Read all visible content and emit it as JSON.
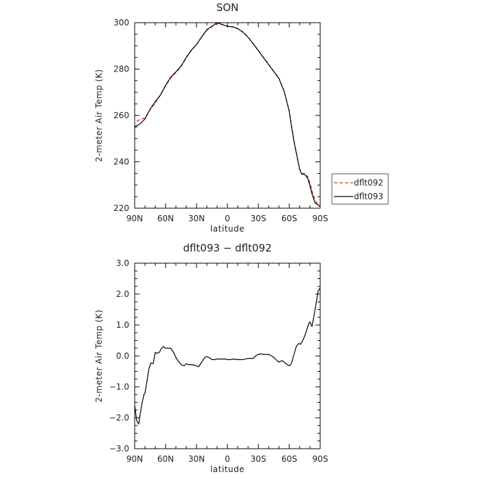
{
  "chart_data": [
    {
      "type": "line",
      "title": "SON",
      "xlabel": "latitude",
      "ylabel": "2-meter Air Temp (K)",
      "x_ticks": [
        "90N",
        "60N",
        "30N",
        "0",
        "30S",
        "60S",
        "90S"
      ],
      "y_ticks": [
        "220",
        "240",
        "260",
        "280",
        "300"
      ],
      "xlim": [
        90,
        -90
      ],
      "ylim": [
        220,
        300
      ],
      "legend_position": "right",
      "series": [
        {
          "name": "dflt092",
          "color": "#e03020",
          "style": "dashed",
          "x": [
            88,
            85,
            80,
            75,
            70,
            65,
            60,
            55,
            50,
            45,
            40,
            35,
            30,
            25,
            20,
            15,
            10,
            5,
            0,
            -5,
            -10,
            -15,
            -20,
            -25,
            -30,
            -35,
            -40,
            -45,
            -50,
            -55,
            -60,
            -62,
            -65,
            -68,
            -70,
            -72,
            -75,
            -78,
            -80,
            -82,
            -85,
            -88,
            -89
          ],
          "y": [
            257.5,
            258.2,
            259,
            262.5,
            265.5,
            268.8,
            272.8,
            276.2,
            278.5,
            281,
            284.8,
            288,
            290.5,
            293.8,
            296.8,
            298.3,
            299.7,
            299.2,
            298.5,
            298.3,
            297.5,
            296,
            293.8,
            291,
            288,
            285,
            282,
            279,
            276,
            270.5,
            262,
            256,
            248,
            241.5,
            237,
            235,
            235,
            233.5,
            231,
            227.5,
            223.5,
            221.3,
            221
          ]
        },
        {
          "name": "dflt093",
          "color": "#000000",
          "style": "solid",
          "x": [
            90,
            87,
            85,
            80,
            75,
            70,
            65,
            60,
            55,
            50,
            45,
            40,
            35,
            30,
            25,
            20,
            15,
            10,
            5,
            0,
            -5,
            -10,
            -15,
            -20,
            -25,
            -30,
            -35,
            -40,
            -45,
            -50,
            -55,
            -60,
            -62,
            -65,
            -68,
            -70,
            -72,
            -75,
            -78,
            -80,
            -82,
            -85,
            -88,
            -89.5
          ],
          "y": [
            255.2,
            255.8,
            256.3,
            258.5,
            262.7,
            266,
            268.8,
            273,
            276.5,
            278.8,
            281.3,
            285,
            288.2,
            290.6,
            293.9,
            297,
            298.5,
            300,
            299.2,
            298.4,
            298.2,
            297.4,
            295.9,
            293.7,
            290.9,
            287.9,
            284.9,
            281.9,
            278.9,
            275.9,
            270.4,
            261.7,
            255.6,
            247.7,
            241.3,
            236.8,
            234.7,
            234.5,
            232.8,
            229.8,
            226.2,
            222.2,
            221.5,
            220.7
          ]
        }
      ]
    },
    {
      "type": "line",
      "title": "dflt093 − dflt092",
      "xlabel": "latitude",
      "ylabel": "2-meter Air Temp (K)",
      "x_ticks": [
        "90N",
        "60N",
        "30N",
        "0",
        "30S",
        "60S",
        "90S"
      ],
      "y_ticks": [
        "3.0",
        "2.0",
        "1.0",
        "0.0",
        "−1.0",
        "−2.0",
        "−3.0"
      ],
      "xlim": [
        90,
        -90
      ],
      "ylim": [
        -3,
        3
      ],
      "series": [
        {
          "color": "#000000",
          "style": "solid",
          "x": [
            90,
            88,
            86,
            85,
            83,
            81,
            80,
            78,
            76,
            74,
            72,
            70,
            68,
            66,
            64,
            62,
            60,
            58,
            55,
            52,
            50,
            48,
            45,
            42,
            40,
            38,
            35,
            32,
            30,
            28,
            25,
            22,
            20,
            18,
            15,
            12,
            10,
            8,
            5,
            2,
            0,
            -3,
            -6,
            -10,
            -15,
            -20,
            -25,
            -28,
            -30,
            -32,
            -35,
            -38,
            -40,
            -43,
            -45,
            -48,
            -50,
            -53,
            -55,
            -58,
            -60,
            -62,
            -65,
            -67,
            -69,
            -71,
            -73,
            -75,
            -77,
            -79,
            -80,
            -82,
            -84,
            -86,
            -88,
            -90
          ],
          "y": [
            -1.6,
            -2.1,
            -2.2,
            -1.95,
            -1.55,
            -1.25,
            -1.2,
            -0.8,
            -0.38,
            -0.22,
            -0.25,
            0.12,
            0.08,
            0.12,
            0.25,
            0.3,
            0.25,
            0.25,
            0.25,
            0.1,
            -0.05,
            -0.15,
            -0.28,
            -0.32,
            -0.25,
            -0.28,
            -0.28,
            -0.3,
            -0.32,
            -0.35,
            -0.2,
            -0.05,
            -0.02,
            -0.05,
            -0.12,
            -0.12,
            -0.1,
            -0.1,
            -0.1,
            -0.1,
            -0.12,
            -0.12,
            -0.1,
            -0.12,
            -0.12,
            -0.08,
            -0.08,
            0.02,
            0.05,
            0.07,
            0.05,
            0.05,
            0.05,
            0.0,
            -0.05,
            -0.15,
            -0.2,
            -0.15,
            -0.2,
            -0.28,
            -0.32,
            -0.25,
            0.1,
            0.32,
            0.4,
            0.38,
            0.5,
            0.65,
            0.85,
            1.05,
            1.1,
            0.95,
            1.3,
            1.7,
            2.1,
            2.2
          ]
        }
      ]
    }
  ]
}
